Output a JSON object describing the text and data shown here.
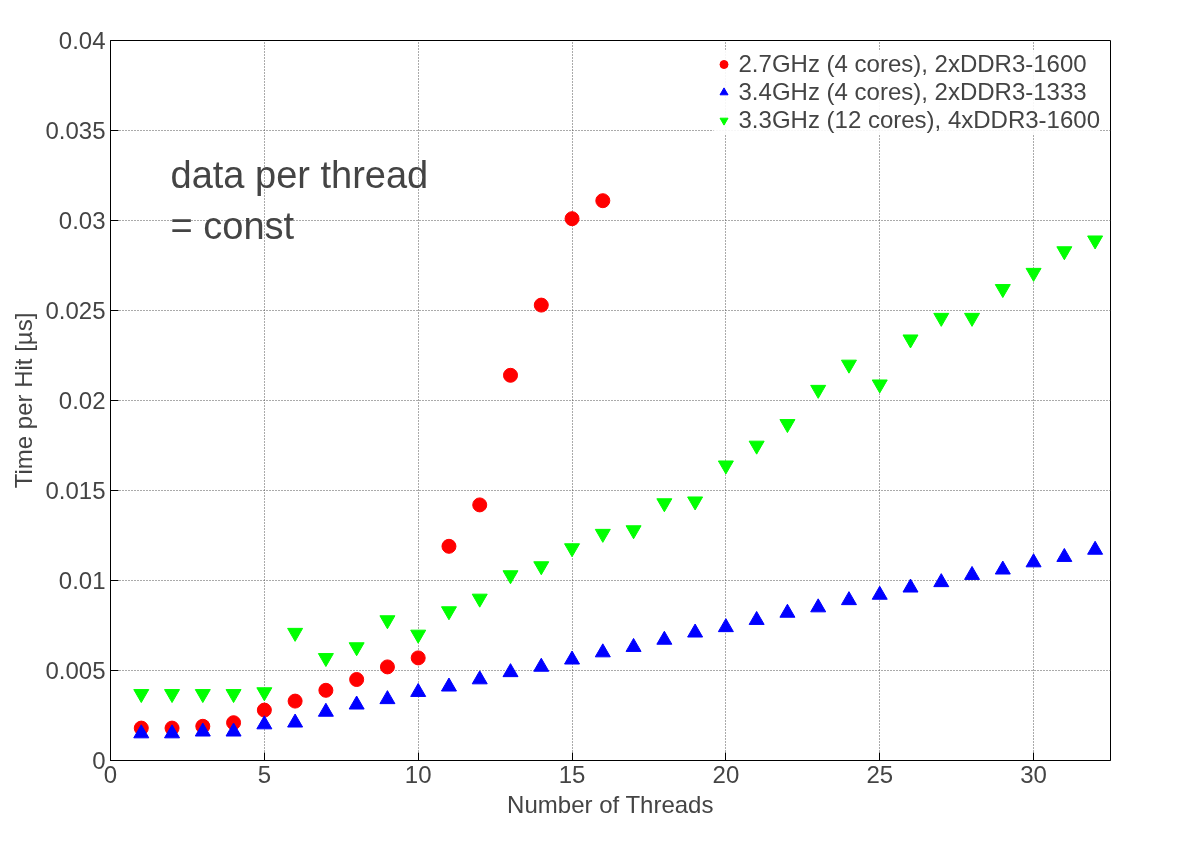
{
  "chart_data": {
    "type": "scatter",
    "xlabel": "Number of Threads",
    "ylabel": "Time per Hit [µs]",
    "xlim": [
      0,
      32.5
    ],
    "ylim": [
      0,
      0.04
    ],
    "xticks": [
      0,
      5,
      10,
      15,
      20,
      25,
      30
    ],
    "yticks": [
      0,
      0.005,
      0.01,
      0.015,
      0.02,
      0.025,
      0.03,
      0.035,
      0.04
    ],
    "grid": true,
    "legend": "top right",
    "annotations": [
      "data per thread\n= const"
    ],
    "series": [
      {
        "name": "2.7GHz (4 cores), 2xDDR3-1600",
        "color": "#ff0000",
        "marker": "circle",
        "x": [
          1,
          2,
          3,
          4,
          5,
          6,
          7,
          8,
          9,
          10,
          11,
          12,
          13,
          14,
          15,
          16
        ],
        "values": [
          0.0018,
          0.0018,
          0.0019,
          0.0021,
          0.0028,
          0.0033,
          0.0039,
          0.0045,
          0.0052,
          0.0057,
          0.0119,
          0.0142,
          0.0214,
          0.0253,
          0.0301,
          0.0311
        ]
      },
      {
        "name": "3.4GHz (4 cores), 2xDDR3-1333",
        "color": "#0000ff",
        "marker": "triangle",
        "x": [
          1,
          2,
          3,
          4,
          5,
          6,
          7,
          8,
          9,
          10,
          11,
          12,
          13,
          14,
          15,
          16,
          17,
          18,
          19,
          20,
          21,
          22,
          23,
          24,
          25,
          26,
          27,
          28,
          29,
          30,
          31,
          32
        ],
        "values": [
          0.0015,
          0.0015,
          0.0016,
          0.0016,
          0.002,
          0.0021,
          0.0027,
          0.0031,
          0.0034,
          0.0038,
          0.0041,
          0.0045,
          0.0049,
          0.0052,
          0.0056,
          0.006,
          0.0063,
          0.0067,
          0.0071,
          0.0074,
          0.0078,
          0.0082,
          0.0085,
          0.0089,
          0.0092,
          0.0096,
          0.0099,
          0.0103,
          0.0106,
          0.011,
          0.0113,
          0.0117
        ]
      },
      {
        "name": "3.3GHz (12 cores), 4xDDR3-1600",
        "color": "#00ff00",
        "x": [
          1,
          2,
          3,
          4,
          5,
          6,
          7,
          8,
          9,
          10,
          11,
          12,
          13,
          14,
          15,
          16,
          17,
          18,
          19,
          20,
          21,
          22,
          23,
          24,
          25,
          26,
          27,
          28,
          29,
          30,
          31,
          32
        ],
        "values": [
          0.0037,
          0.0037,
          0.0037,
          0.0037,
          0.0038,
          0.0071,
          0.0057,
          0.0063,
          0.0078,
          0.007,
          0.0083,
          0.009,
          0.0103,
          0.0108,
          0.0118,
          0.0126,
          0.0128,
          0.0143,
          0.0144,
          0.0164,
          0.0175,
          0.0187,
          0.0206,
          0.022,
          0.0209,
          0.0234,
          0.0246,
          0.0246,
          0.0262,
          0.0271,
          0.0283,
          0.0289
        ]
      }
    ]
  }
}
